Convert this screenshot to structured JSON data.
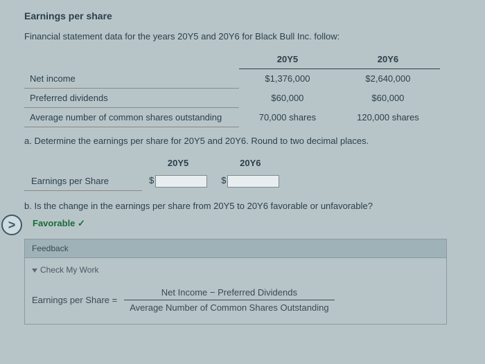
{
  "title": "Earnings per share",
  "subtitle": "Financial statement data for the years 20Y5 and 20Y6 for Black Bull Inc. follow:",
  "years": {
    "y1": "20Y5",
    "y2": "20Y6"
  },
  "rows": {
    "net_income": {
      "label": "Net income",
      "y1": "$1,376,000",
      "y2": "$2,640,000"
    },
    "pref_div": {
      "label": "Preferred dividends",
      "y1": "$60,000",
      "y2": "$60,000"
    },
    "avg_shares": {
      "label": "Average number of common shares outstanding",
      "y1": "70,000 shares",
      "y2": "120,000 shares"
    }
  },
  "question_a": "a. Determine the earnings per share for 20Y5 and 20Y6. Round to two decimal places.",
  "eps_label": "Earnings per Share",
  "question_b": "b. Is the change in the earnings per share from 20Y5 to 20Y6 favorable or unfavorable?",
  "answer_b": "Favorable",
  "nav_glyph": ">",
  "feedback": "Feedback",
  "check_my_work": "Check My Work",
  "formula": {
    "lhs": "Earnings per Share =",
    "numerator": "Net Income − Preferred Dividends",
    "denominator": "Average Number of Common Shares Outstanding"
  },
  "checkmark": "✓",
  "dollar": "$"
}
